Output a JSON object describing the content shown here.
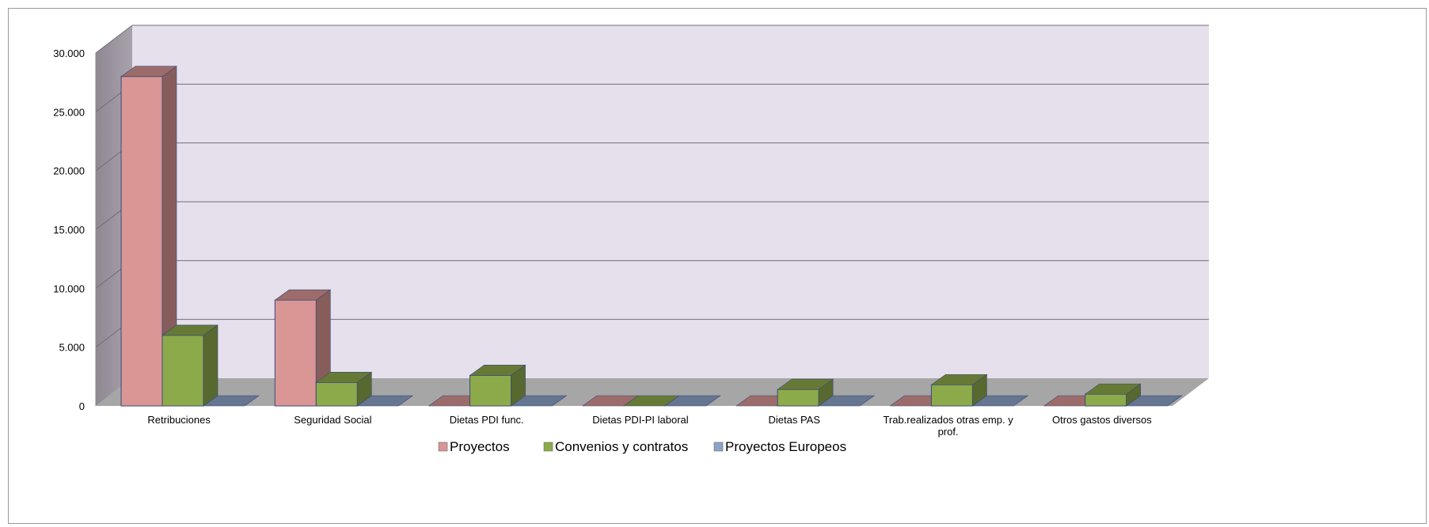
{
  "chart_data": {
    "type": "bar",
    "style": "3d-clustered-column",
    "categories": [
      "Retribuciones",
      "Seguridad Social",
      "Dietas PDI func.",
      "Dietas PDI-PI laboral",
      "Dietas PAS",
      "Trab.realizados otras emp. y prof.",
      "Otros gastos diversos"
    ],
    "series": [
      {
        "name": "Proyectos",
        "color": "#D99694",
        "values": [
          28000,
          9000,
          0,
          0,
          0,
          0,
          0
        ]
      },
      {
        "name": "Convenios y contratos",
        "color": "#8DAA4A",
        "values": [
          6000,
          2000,
          2600,
          0,
          1400,
          1800,
          1000
        ]
      },
      {
        "name": "Proyectos Europeos",
        "color": "#8EA3C8",
        "values": [
          0,
          0,
          0,
          0,
          0,
          0,
          0
        ]
      }
    ],
    "ylim": [
      0,
      30000
    ],
    "yticks": [
      "0",
      "5.000",
      "10.000",
      "15.000",
      "20.000",
      "25.000",
      "30.000"
    ],
    "grid": true,
    "legend_position": "bottom"
  }
}
